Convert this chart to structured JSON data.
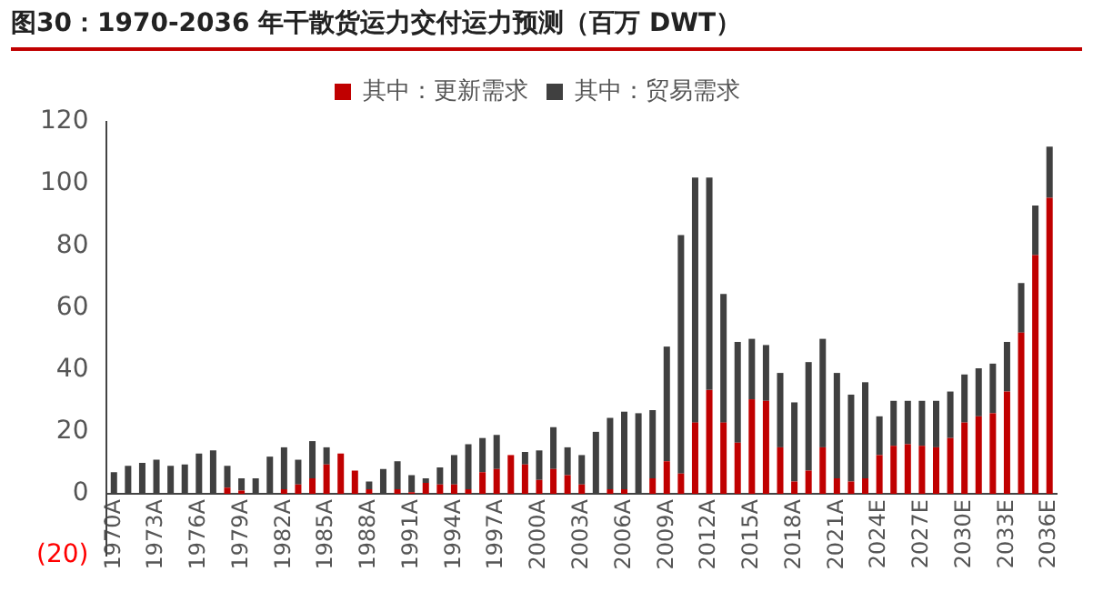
{
  "chart_data": {
    "type": "bar",
    "title": "图30：1970-2036 年干散货运力交付运力预测（百万 DWT）",
    "categories": [
      "1970A",
      null,
      null,
      "1973A",
      null,
      null,
      "1976A",
      null,
      null,
      "1979A",
      null,
      null,
      "1982A",
      null,
      null,
      "1985A",
      null,
      null,
      "1988A",
      null,
      null,
      "1991A",
      null,
      null,
      "1994A",
      null,
      null,
      "1997A",
      null,
      null,
      "2000A",
      null,
      null,
      "2003A",
      null,
      null,
      "2006A",
      null,
      null,
      "2009A",
      null,
      null,
      "2012A",
      null,
      null,
      "2015A",
      null,
      null,
      "2018A",
      null,
      null,
      "2021A",
      null,
      null,
      "2024E",
      null,
      null,
      "2027E",
      null,
      null,
      "2030E",
      null,
      null,
      "2033E",
      null,
      null,
      "2036E"
    ],
    "stacked": true,
    "series": [
      {
        "name": "其中：更新需求",
        "color": "#c00000",
        "values": [
          0,
          0,
          0,
          0,
          0,
          0,
          0,
          0,
          2,
          1,
          0,
          0,
          1.5,
          3,
          5,
          9.5,
          13,
          7.5,
          1.5,
          0,
          1.5,
          0.5,
          3.5,
          3,
          3,
          1.5,
          7,
          8,
          12.5,
          9.5,
          4.5,
          8,
          6,
          3,
          0,
          1.5,
          1.5,
          0,
          5,
          10.5,
          6.5,
          23,
          33.5,
          23,
          16.5,
          30.5,
          30,
          15,
          4,
          7.5,
          15,
          5,
          4,
          5,
          12.5,
          15.5,
          16,
          15.5,
          15,
          18,
          23,
          25,
          26,
          33,
          52,
          77,
          95.5
        ]
      },
      {
        "name": "其中：贸易需求",
        "color": "#404040",
        "values": [
          7,
          9,
          10,
          11,
          9,
          9.5,
          13,
          14,
          7,
          4,
          5,
          12,
          13.5,
          8,
          12,
          5.5,
          0,
          0,
          2.5,
          8,
          9,
          5.5,
          1.5,
          5.5,
          9.5,
          14.5,
          11,
          11,
          0,
          4,
          9.5,
          13.5,
          9,
          9.5,
          20,
          23,
          25,
          26,
          22,
          37,
          77,
          79,
          68.5,
          41.5,
          32.5,
          19.5,
          18,
          24,
          25.5,
          35,
          35,
          34,
          28,
          31,
          12.5,
          14.5,
          14,
          14.5,
          15,
          15,
          15.5,
          15.5,
          16,
          16,
          16,
          16,
          16.5
        ]
      }
    ],
    "ylim": [
      -20,
      120
    ],
    "yticks": [
      {
        "value": -20,
        "label": "(20)"
      },
      0,
      20,
      40,
      60,
      80,
      100,
      120
    ],
    "grid": false,
    "legend": "top"
  }
}
